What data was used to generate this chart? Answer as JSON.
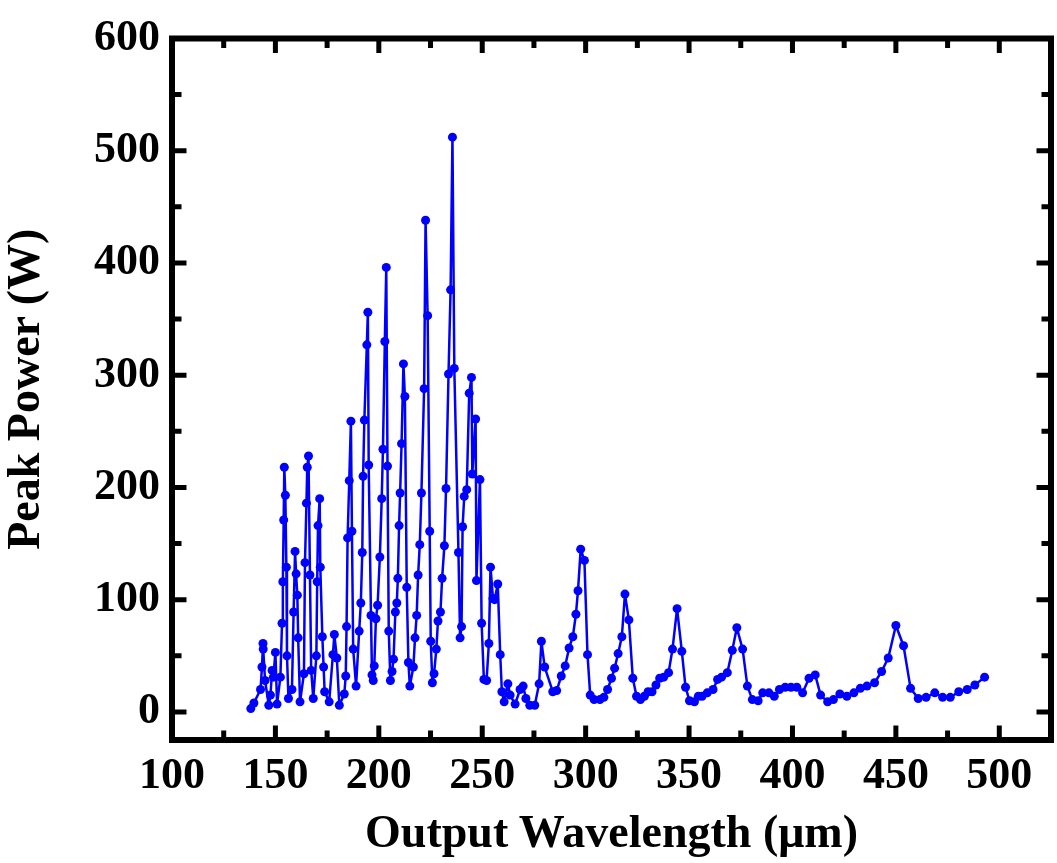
{
  "chart_data": {
    "type": "line",
    "xlabel": "Output Wavelength (μm)",
    "ylabel": "Peak Power (W)",
    "xlim": [
      100,
      525
    ],
    "ylim": [
      -25,
      600
    ],
    "xticks": [
      100,
      {
        "value": 125,
        "label": null
      },
      150,
      {
        "value": 175,
        "label": null
      },
      200,
      {
        "value": 225,
        "label": null
      },
      250,
      {
        "value": 275,
        "label": null
      },
      300,
      {
        "value": 325,
        "label": null
      },
      350,
      {
        "value": 375,
        "label": null
      },
      400,
      {
        "value": 425,
        "label": null
      },
      450,
      {
        "value": 475,
        "label": null
      },
      500
    ],
    "yticks": [
      0,
      {
        "value": 50,
        "label": null
      },
      100,
      {
        "value": 150,
        "label": null
      },
      200,
      {
        "value": 250,
        "label": null
      },
      300,
      {
        "value": 350,
        "label": null
      },
      400,
      {
        "value": 450,
        "label": null
      },
      500,
      {
        "value": 550,
        "label": null
      },
      600
    ],
    "grid": false,
    "legend": false,
    "marker": "circle",
    "line_style": "solid",
    "series": [
      {
        "color": "#0000ff",
        "x": [
          138.1,
          139.6,
          142.8,
          143.5,
          144,
          144.1,
          145,
          146.8,
          147.6,
          148.4,
          149,
          150,
          150.8,
          152.4,
          153.2,
          153.6,
          154,
          154.3,
          154.8,
          155.3,
          155.6,
          156.3,
          158,
          158.8,
          159.5,
          160,
          160.6,
          161,
          161.9,
          163.8,
          164.3,
          165,
          165.4,
          166,
          166.7,
          167.3,
          168.3,
          169.8,
          170.2,
          170.6,
          171.4,
          171.7,
          172.7,
          173.3,
          173.8,
          176,
          177.8,
          178.5,
          179.7,
          180.9,
          183.3,
          184,
          184.4,
          184.9,
          185.7,
          186.5,
          187,
          187.6,
          189,
          190.5,
          191.3,
          192,
          192.4,
          193,
          194.2,
          194.7,
          195.1,
          196.2,
          196.7,
          197.3,
          197.8,
          198.6,
          199.4,
          200.5,
          201.4,
          202,
          202.9,
          203.6,
          204.2,
          204.8,
          205.6,
          206.4,
          207.1,
          208,
          208.7,
          209.2,
          209.8,
          210.3,
          211,
          211.9,
          212.6,
          213.5,
          214.3,
          215,
          216.7,
          217.5,
          218.3,
          219,
          219.8,
          220.6,
          221.9,
          222.6,
          223.6,
          224.6,
          225.1,
          225.9,
          226.7,
          227.8,
          228.6,
          229.8,
          230.6,
          231.7,
          232.5,
          233.7,
          234.7,
          235.6,
          236.5,
          238.5,
          239.3,
          240,
          240.5,
          241.3,
          242.5,
          243.7,
          244.8,
          245.2,
          246.8,
          247.2,
          248.9,
          249.7,
          250.8,
          252.1,
          253.2,
          254,
          255.2,
          256,
          257.5,
          258.7,
          259.5,
          260.6,
          262.4,
          263.5,
          265.9,
          268.3,
          269.8,
          271.1,
          273,
          275.4,
          277.5,
          278.6,
          280.2,
          284.1,
          286,
          288.2,
          290.1,
          292,
          293.8,
          295.3,
          296.3,
          297.6,
          299.4,
          300.9,
          302.2,
          304.1,
          306.9,
          308.8,
          310.6,
          312.5,
          314,
          315.7,
          317.5,
          319,
          320.9,
          322.8,
          324.6,
          326.5,
          328.4,
          330.2,
          332.1,
          334,
          335.8,
          337.7,
          340.1,
          342,
          344.2,
          346.5,
          348.3,
          350.2,
          352.6,
          354.5,
          356.3,
          358.8,
          361.6,
          363.8,
          365.7,
          368.5,
          370.9,
          373.1,
          375.9,
          378.2,
          380.6,
          383.4,
          385.6,
          388.6,
          391.2,
          393.7,
          396.5,
          399.3,
          402.1,
          404.9,
          408,
          411,
          413.6,
          417,
          419.8,
          422.9,
          426.3,
          429.7,
          432.8,
          436,
          439.7,
          443.1,
          446.3,
          450,
          453.7,
          457.1,
          460.8,
          464.6,
          468.8,
          472.6,
          476.3,
          480.4,
          484.5,
          488.2,
          492.9
        ],
        "values": [
          3,
          8,
          20,
          40,
          61,
          56,
          28,
          6,
          15,
          37,
          31,
          53,
          7,
          31,
          79,
          116,
          171,
          218,
          193,
          129,
          50,
          12,
          20,
          89,
          143,
          123,
          104,
          66,
          9,
          34,
          133,
          186,
          218,
          228,
          122,
          37,
          12,
          50,
          116,
          166,
          190,
          129,
          67,
          40,
          18,
          9,
          51,
          69,
          48,
          6,
          16,
          32,
          76,
          155,
          206,
          259,
          161,
          56,
          23,
          72,
          97,
          142,
          210,
          260,
          327,
          356,
          220,
          86,
          33,
          28,
          41,
          83,
          95,
          138,
          190,
          234,
          330,
          396,
          219,
          72,
          28,
          36,
          47,
          89,
          97,
          119,
          166,
          195,
          239,
          310,
          281,
          111,
          44,
          23,
          40,
          66,
          86,
          122,
          149,
          195,
          288,
          438,
          353,
          161,
          63,
          26,
          34,
          56,
          81,
          89,
          119,
          148,
          199,
          301,
          376,
          512,
          306,
          142,
          66,
          76,
          165,
          192,
          198,
          284,
          298,
          212,
          261,
          117,
          207,
          79,
          29,
          28,
          61,
          129,
          101,
          100,
          114,
          51,
          18,
          9,
          25,
          15,
          7,
          20,
          23,
          12,
          6,
          6,
          25,
          63,
          40,
          18,
          19,
          32,
          41,
          57,
          67,
          87,
          108,
          145,
          135,
          51,
          15,
          11,
          11,
          13,
          20,
          30,
          39,
          52,
          67,
          105,
          82,
          30,
          14,
          11,
          14,
          18,
          18,
          24,
          30,
          31,
          35,
          56,
          92,
          54,
          22,
          10,
          9,
          14,
          14,
          17,
          20,
          29,
          31,
          35,
          55,
          75,
          56,
          23,
          11,
          10,
          17,
          17,
          14,
          20,
          22,
          22,
          22,
          17,
          30,
          33,
          15,
          9,
          11,
          16,
          14,
          17,
          21,
          23,
          26,
          36,
          48,
          77,
          59,
          21,
          12,
          13,
          17,
          13,
          13,
          18,
          20,
          24,
          31
        ]
      }
    ]
  }
}
